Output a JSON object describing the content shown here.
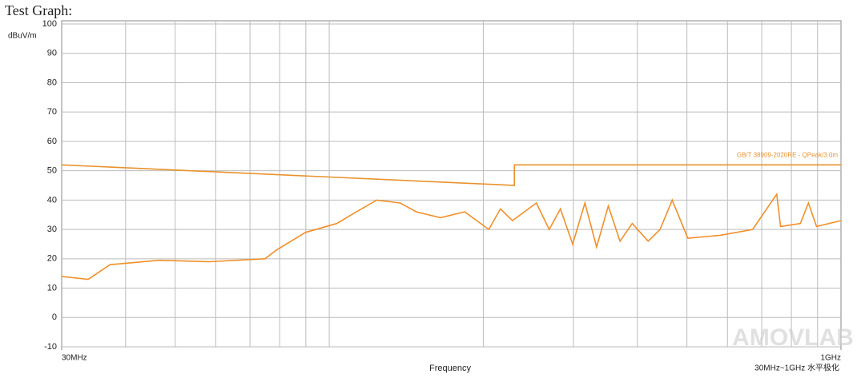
{
  "chart_data": {
    "type": "line",
    "title": "Test Graph:",
    "y_label": "dBuV/m",
    "x_label": "Frequency",
    "annotation": "30MHz~1GHz 水平极化",
    "watermark": "AMOVLAB",
    "log_x": true,
    "grid": true,
    "xlim": [
      30,
      1000
    ],
    "xticks": [
      {
        "value": 30,
        "label": "30MHz"
      },
      {
        "value": 1000,
        "label": "1GHz"
      }
    ],
    "x_minor_ticks": [
      40,
      50,
      60,
      70,
      80,
      90,
      100,
      200,
      300,
      400,
      500,
      600,
      700,
      800,
      900
    ],
    "ylim": [
      -10,
      100
    ],
    "yticks": [
      -10,
      0,
      10,
      20,
      30,
      40,
      50,
      60,
      70,
      80,
      90,
      100
    ],
    "series": [
      {
        "name": "GB/T 38909-2020RE - QPeak/3.0m",
        "color": "#e8922e",
        "x": [
          30,
          230,
          230,
          1000
        ],
        "values": [
          52,
          45,
          52,
          52
        ]
      },
      {
        "color": "#f0902a",
        "x": [
          30,
          33.8,
          37.3,
          46.6,
          58.3,
          74.9,
          78.9,
          89.9,
          103.4,
          113,
          123.8,
          137.6,
          148,
          165,
          184,
          205,
          216,
          228,
          254,
          269,
          283,
          299,
          316,
          333,
          351,
          370,
          391,
          420,
          443,
          468,
          502,
          581,
          672,
          749,
          762,
          833,
          864,
          896,
          1000
        ],
        "values": [
          14,
          13,
          18,
          19.5,
          19,
          20,
          23,
          29,
          32,
          36,
          40,
          39,
          36,
          34,
          36,
          30,
          37,
          33,
          39,
          30,
          37,
          25,
          39,
          24,
          38,
          26,
          32,
          26,
          30,
          40,
          27,
          28,
          30,
          42,
          31,
          32,
          39,
          31,
          33
        ]
      }
    ]
  }
}
